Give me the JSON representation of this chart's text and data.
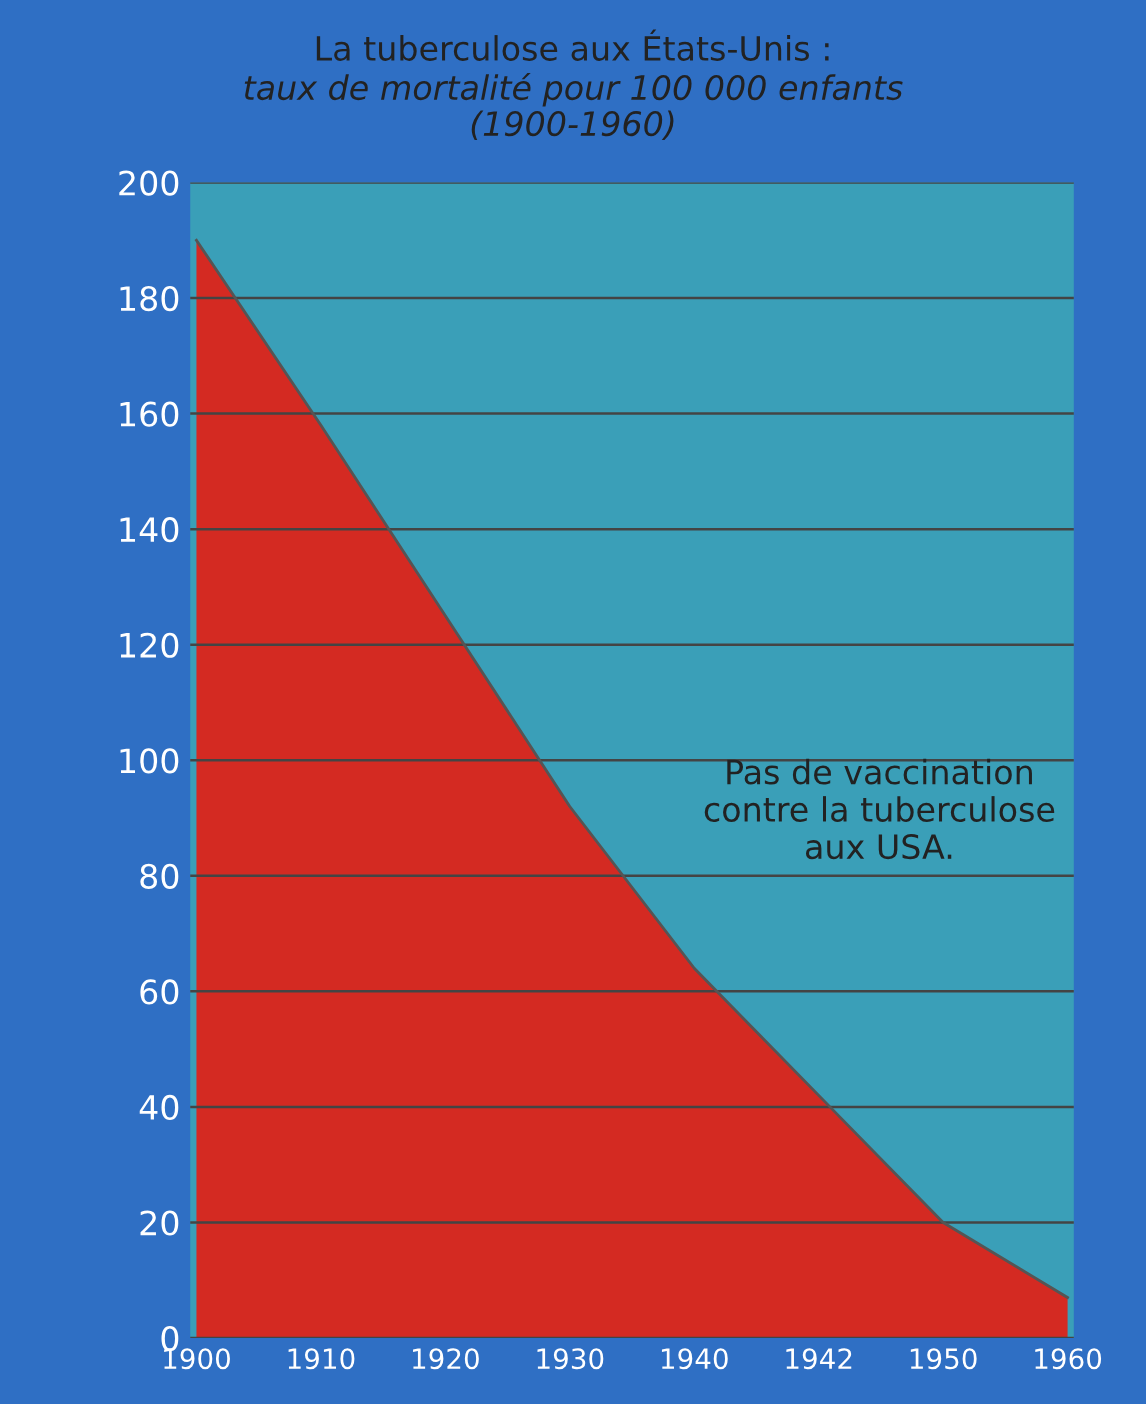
{
  "chart_data": {
    "type": "area",
    "title": "La tuberculose aux États-Unis :",
    "subtitle": "taux de mortalité pour 100 000 enfants\n(1900-1960)",
    "categories": [
      "1900",
      "1910",
      "1920",
      "1930",
      "1940",
      "1942",
      "1950",
      "1960"
    ],
    "series": [
      {
        "color": "#d42a22",
        "values": [
          190,
          158,
          125,
          92,
          64,
          42,
          20,
          7
        ]
      }
    ],
    "ylim": [
      0,
      200
    ],
    "yticks": [
      0,
      20,
      40,
      60,
      80,
      100,
      120,
      140,
      160,
      180,
      200
    ],
    "grid": "y",
    "annotations": [
      "Pas de vaccination\ncontre la tuberculose\naux USA."
    ]
  }
}
